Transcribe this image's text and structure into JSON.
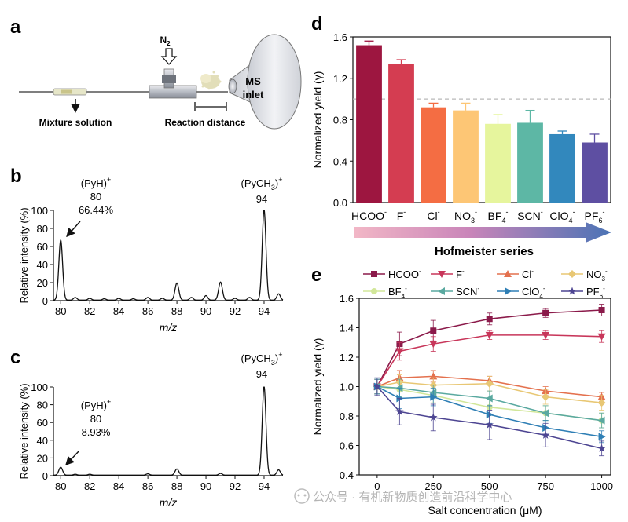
{
  "watermark": "公众号 · 有机新物质创造前沿科学中心",
  "panel_a": {
    "letter": "a",
    "labels": {
      "n2": "N",
      "n2_sub": "2",
      "ms_line1": "MS",
      "ms_line2": "inlet",
      "mixture": "Mixture solution",
      "reaction": "Reaction distance"
    }
  },
  "chart_data": [
    {
      "id": "b",
      "type": "line",
      "letter": "b",
      "xlabel": "m/z",
      "ylabel": "Relative intensity (%)",
      "xlim": [
        79.5,
        95.3
      ],
      "ylim": [
        0,
        100
      ],
      "xticks": [
        80,
        82,
        84,
        86,
        88,
        90,
        92,
        94
      ],
      "yticks": [
        0,
        20,
        40,
        60,
        80,
        100
      ],
      "peaks": [
        {
          "x": 80,
          "y": 66.44,
          "w": 0.13
        },
        {
          "x": 81,
          "y": 3,
          "w": 0.12
        },
        {
          "x": 82,
          "y": 2,
          "w": 0.12
        },
        {
          "x": 83,
          "y": 1.5,
          "w": 0.12
        },
        {
          "x": 84,
          "y": 2,
          "w": 0.12
        },
        {
          "x": 85,
          "y": 1.5,
          "w": 0.12
        },
        {
          "x": 86,
          "y": 3,
          "w": 0.12
        },
        {
          "x": 87,
          "y": 2,
          "w": 0.12
        },
        {
          "x": 88,
          "y": 19,
          "w": 0.13
        },
        {
          "x": 89,
          "y": 3,
          "w": 0.12
        },
        {
          "x": 90,
          "y": 5,
          "w": 0.12
        },
        {
          "x": 91,
          "y": 20,
          "w": 0.13
        },
        {
          "x": 92,
          "y": 2,
          "w": 0.12
        },
        {
          "x": 93,
          "y": 3,
          "w": 0.12
        },
        {
          "x": 94,
          "y": 100,
          "w": 0.13
        },
        {
          "x": 95,
          "y": 7,
          "w": 0.12
        }
      ],
      "annotations": [
        {
          "ion": "(PyH)",
          "charge": "+",
          "mz": "80",
          "pct": "66.44%"
        },
        {
          "ion": "(PyCH",
          "sub": "3",
          "close": ")",
          "charge": "+",
          "mz": "94"
        }
      ]
    },
    {
      "id": "c",
      "type": "line",
      "letter": "c",
      "xlabel": "m/z",
      "ylabel": "Relative intensity (%)",
      "xlim": [
        79.5,
        95.3
      ],
      "ylim": [
        0,
        100
      ],
      "xticks": [
        80,
        82,
        84,
        86,
        88,
        90,
        92,
        94
      ],
      "yticks": [
        0,
        20,
        40,
        60,
        80,
        100
      ],
      "peaks": [
        {
          "x": 80,
          "y": 8.93,
          "w": 0.13
        },
        {
          "x": 81,
          "y": 1,
          "w": 0.12
        },
        {
          "x": 82,
          "y": 1,
          "w": 0.12
        },
        {
          "x": 86,
          "y": 1.5,
          "w": 0.12
        },
        {
          "x": 88,
          "y": 7,
          "w": 0.13
        },
        {
          "x": 91,
          "y": 2,
          "w": 0.12
        },
        {
          "x": 94,
          "y": 100,
          "w": 0.13
        },
        {
          "x": 95,
          "y": 6,
          "w": 0.12
        }
      ],
      "annotations": [
        {
          "ion": "(PyH)",
          "charge": "+",
          "mz": "80",
          "pct": "8.93%"
        },
        {
          "ion": "(PyCH",
          "sub": "3",
          "close": ")",
          "charge": "+",
          "mz": "94"
        }
      ]
    },
    {
      "id": "d",
      "type": "bar",
      "letter": "d",
      "ylabel": "Normalized yield (γ)",
      "ylim": [
        0,
        1.6
      ],
      "yticks": [
        "0.0",
        "0.4",
        "0.8",
        "1.2",
        "1.6"
      ],
      "reference_line": 1.0,
      "categories": [
        {
          "base": "HCOO",
          "sub": "",
          "sup": "-"
        },
        {
          "base": "F",
          "sub": "",
          "sup": "-"
        },
        {
          "base": "Cl",
          "sub": "",
          "sup": "-"
        },
        {
          "base": "NO",
          "sub": "3",
          "sup": "-"
        },
        {
          "base": "BF",
          "sub": "4",
          "sup": "-"
        },
        {
          "base": "SCN",
          "sub": "",
          "sup": "-"
        },
        {
          "base": "ClO",
          "sub": "4",
          "sup": "-"
        },
        {
          "base": "PF",
          "sub": "6",
          "sup": "-"
        }
      ],
      "values": [
        1.52,
        1.34,
        0.92,
        0.89,
        0.76,
        0.77,
        0.66,
        0.58
      ],
      "errors": [
        0.04,
        0.04,
        0.04,
        0.07,
        0.09,
        0.12,
        0.03,
        0.08
      ],
      "colors": [
        "#9d1640",
        "#d43d51",
        "#f46d43",
        "#fdc675",
        "#e6f59d",
        "#5db7a5",
        "#3288bd",
        "#5e4fa2"
      ],
      "series_label": "Hofmeister series"
    },
    {
      "id": "e",
      "type": "line",
      "letter": "e",
      "xlabel": "Salt concentration (μM)",
      "ylabel": "Normalized yield (γ)",
      "xlim": [
        -80,
        1040
      ],
      "ylim": [
        0.4,
        1.6
      ],
      "xticks": [
        0,
        250,
        500,
        750,
        1000
      ],
      "yticks": [
        "0.4",
        "0.6",
        "0.8",
        "1.0",
        "1.2",
        "1.4",
        "1.6"
      ],
      "x": [
        0,
        100,
        250,
        500,
        750,
        1000
      ],
      "series": [
        {
          "base": "HCOO",
          "sub": "",
          "sup": "-",
          "color": "#8b1a4a",
          "marker": "square",
          "values": [
            1.0,
            1.29,
            1.38,
            1.46,
            1.5,
            1.52
          ],
          "errors": [
            0.05,
            0.08,
            0.07,
            0.04,
            0.03,
            0.04
          ]
        },
        {
          "base": "F",
          "sub": "",
          "sup": "-",
          "color": "#c8365a",
          "marker": "tri-down",
          "values": [
            1.0,
            1.24,
            1.29,
            1.35,
            1.35,
            1.34
          ],
          "errors": [
            0.05,
            0.06,
            0.05,
            0.03,
            0.03,
            0.04
          ]
        },
        {
          "base": "Cl",
          "sub": "",
          "sup": "-",
          "color": "#e4714e",
          "marker": "tri-up",
          "values": [
            1.0,
            1.06,
            1.07,
            1.04,
            0.97,
            0.93
          ],
          "errors": [
            0.05,
            0.05,
            0.04,
            0.03,
            0.03,
            0.03
          ]
        },
        {
          "base": "NO",
          "sub": "3",
          "sup": "-",
          "color": "#e8c774",
          "marker": "diamond",
          "values": [
            1.0,
            1.03,
            1.01,
            1.02,
            0.93,
            0.89
          ],
          "errors": [
            0.05,
            0.05,
            0.05,
            0.05,
            0.05,
            0.05
          ]
        },
        {
          "base": "BF",
          "sub": "4",
          "sup": "-",
          "color": "#d2e79a",
          "marker": "circle",
          "values": [
            1.0,
            0.98,
            0.94,
            0.86,
            0.82,
            0.77
          ],
          "errors": [
            0.05,
            0.05,
            0.05,
            0.05,
            0.05,
            0.05
          ]
        },
        {
          "base": "SCN",
          "sub": "",
          "sup": "-",
          "color": "#5aa9a0",
          "marker": "tri-left",
          "values": [
            1.0,
            0.99,
            0.96,
            0.92,
            0.82,
            0.77
          ],
          "errors": [
            0.05,
            0.06,
            0.05,
            0.05,
            0.05,
            0.05
          ]
        },
        {
          "base": "ClO",
          "sub": "4",
          "sup": "-",
          "color": "#2f7fb5",
          "marker": "tri-right",
          "values": [
            1.0,
            0.92,
            0.93,
            0.81,
            0.72,
            0.66
          ],
          "errors": [
            0.05,
            0.07,
            0.06,
            0.06,
            0.05,
            0.04
          ]
        },
        {
          "base": "PF",
          "sub": "6",
          "sup": "-",
          "color": "#4d4592",
          "marker": "star",
          "values": [
            1.0,
            0.83,
            0.79,
            0.74,
            0.67,
            0.58
          ],
          "errors": [
            0.06,
            0.09,
            0.09,
            0.1,
            0.08,
            0.05
          ]
        }
      ]
    }
  ]
}
